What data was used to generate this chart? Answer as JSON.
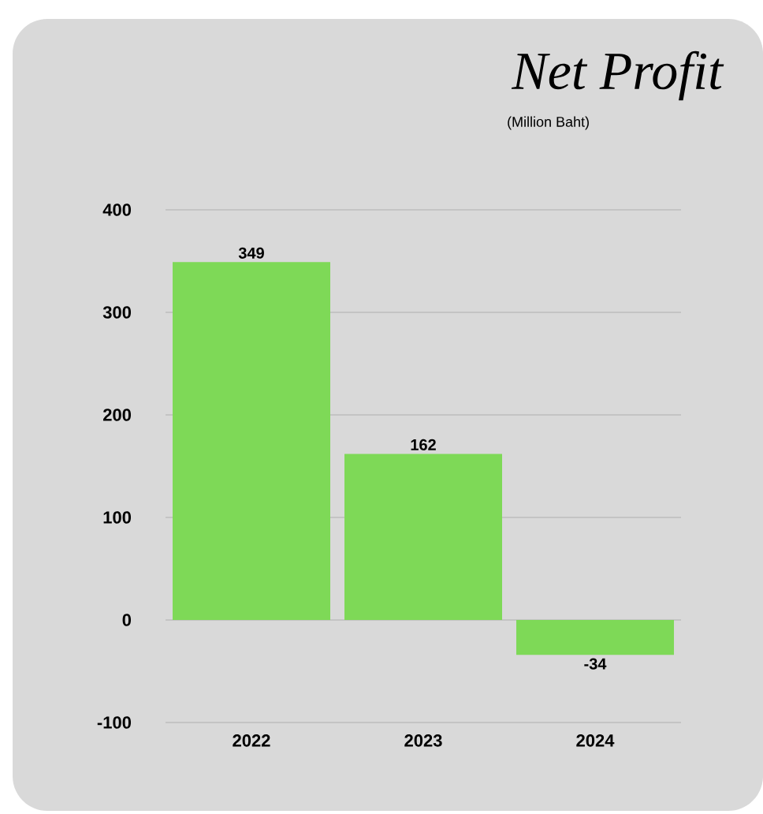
{
  "chart_data": {
    "type": "bar",
    "title": "Net Profit",
    "subtitle": "(Million Baht)",
    "categories": [
      "2022",
      "2023",
      "2024"
    ],
    "values": [
      349,
      162,
      -34
    ],
    "color": "#7ed957",
    "ylim": [
      -100,
      400
    ],
    "yticks": [
      -100,
      0,
      100,
      200,
      300,
      400
    ],
    "grid": "y",
    "data_labels": true
  }
}
